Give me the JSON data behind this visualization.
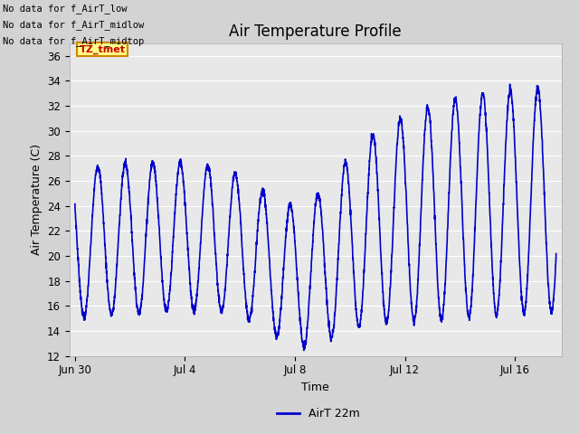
{
  "title": "Air Temperature Profile",
  "xlabel": "Time",
  "ylabel": "Air Temperature (C)",
  "legend_label": "AirT 22m",
  "no_data_texts": [
    "No data for f_AirT_low",
    "No data for f_AirT_midlow",
    "No data for f_AirT_midtop"
  ],
  "tz_tmet_label": "TZ_tmet",
  "ylim": [
    12,
    37
  ],
  "yticks": [
    12,
    14,
    16,
    18,
    20,
    22,
    24,
    26,
    28,
    30,
    32,
    34,
    36
  ],
  "line_color": "#0000cc",
  "line_width": 1.2,
  "title_fontsize": 12,
  "axis_label_fontsize": 9,
  "tick_fontsize": 8.5,
  "x_tick_labels": [
    "Jun 30",
    "Jul 4",
    "Jul 8",
    "Jul 12",
    "Jul 16"
  ],
  "x_tick_positions": [
    0,
    4,
    8,
    12,
    16
  ],
  "xlim": [
    -0.2,
    17.7
  ],
  "fig_bg_color": "#d3d3d3",
  "axes_bg_color": "#e8e8e8",
  "grid_color": "#ffffff"
}
